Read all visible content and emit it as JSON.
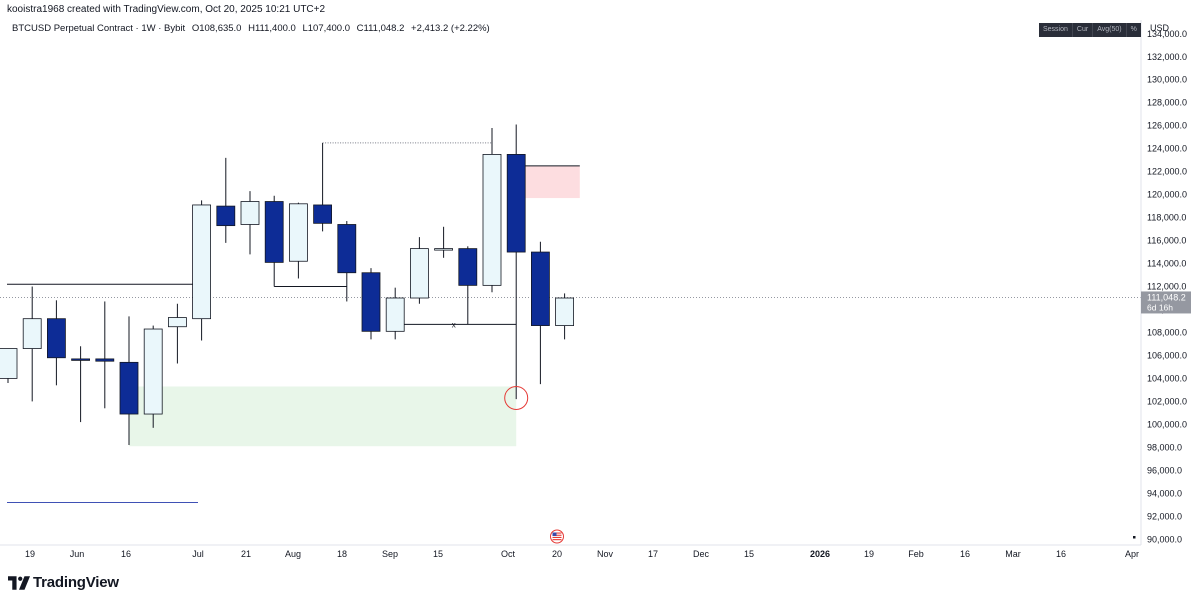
{
  "header": {
    "credit": "kooistra1968 created with TradingView.com, Oct 20, 2025 10:21 UTC+2"
  },
  "legend": {
    "symbol": "BTCUSD Perpetual Contract · 1W · Bybit",
    "open": "O108,635.0",
    "high": "H111,400.0",
    "low": "L107,400.0",
    "close": "C111,048.2",
    "change": "+2,413.2 (+2.22%)"
  },
  "toolbar": {
    "items": [
      "Session",
      "Cur",
      "Avg(50)",
      "%"
    ]
  },
  "axis": {
    "currency": "USD"
  },
  "price_label": {
    "value": "111,048.2",
    "countdown": "6d 16h"
  },
  "brand": {
    "name": "TradingView"
  },
  "colors": {
    "bull_fill": "#eaf7fb",
    "bear_fill": "#0d2c96",
    "candle_border": "#131722",
    "green_zone": "#e8f6e9",
    "red_zone": "#fddde0",
    "circle": "#e53935",
    "blue_line": "#3f51b5"
  },
  "chart_data": {
    "type": "candlestick",
    "title": "BTCUSD Perpetual Contract · 1W · Bybit",
    "x_ticks": [
      "19",
      "Jun",
      "16",
      "Jul",
      "21",
      "Aug",
      "18",
      "Sep",
      "15",
      "Oct",
      "20",
      "Nov",
      "17",
      "Dec",
      "15",
      "2026",
      "19",
      "Feb",
      "16",
      "Mar",
      "16",
      "Apr"
    ],
    "y_ticks": [
      "90,000.0",
      "92,000.0",
      "94,000.0",
      "96,000.0",
      "98,000.0",
      "100,000.0",
      "102,000.0",
      "104,000.0",
      "106,000.0",
      "108,000.0",
      "110,000.0",
      "112,000.0",
      "114,000.0",
      "116,000.0",
      "118,000.0",
      "120,000.0",
      "122,000.0",
      "124,000.0",
      "126,000.0",
      "128,000.0",
      "130,000.0",
      "132,000.0",
      "134,000.0"
    ],
    "ylim": [
      89500,
      135200
    ],
    "candles": [
      {
        "o": 104000,
        "h": 106500,
        "l": 103600,
        "c": 106600
      },
      {
        "o": 106600,
        "h": 112000,
        "l": 102000,
        "c": 109200
      },
      {
        "o": 109200,
        "h": 110800,
        "l": 103400,
        "c": 105800
      },
      {
        "o": 105700,
        "h": 106800,
        "l": 100200,
        "c": 105600
      },
      {
        "o": 105700,
        "h": 110700,
        "l": 101400,
        "c": 105500
      },
      {
        "o": 105400,
        "h": 109400,
        "l": 98200,
        "c": 100900
      },
      {
        "o": 100900,
        "h": 108600,
        "l": 99700,
        "c": 108300
      },
      {
        "o": 108500,
        "h": 110500,
        "l": 105300,
        "c": 109300
      },
      {
        "o": 109200,
        "h": 119500,
        "l": 107300,
        "c": 119100
      },
      {
        "o": 119000,
        "h": 123200,
        "l": 115800,
        "c": 117300
      },
      {
        "o": 117400,
        "h": 120300,
        "l": 114800,
        "c": 119400
      },
      {
        "o": 119400,
        "h": 119900,
        "l": 112000,
        "c": 114100
      },
      {
        "o": 114200,
        "h": 119300,
        "l": 112700,
        "c": 119200
      },
      {
        "o": 119100,
        "h": 124500,
        "l": 116800,
        "c": 117500
      },
      {
        "o": 117400,
        "h": 117700,
        "l": 110700,
        "c": 113200
      },
      {
        "o": 113200,
        "h": 113600,
        "l": 107400,
        "c": 108100
      },
      {
        "o": 108100,
        "h": 111900,
        "l": 107400,
        "c": 111000
      },
      {
        "o": 111000,
        "h": 116300,
        "l": 110500,
        "c": 115300
      },
      {
        "o": 115300,
        "h": 117200,
        "l": 114500,
        "c": 115300
      },
      {
        "o": 115300,
        "h": 115500,
        "l": 108700,
        "c": 112100
      },
      {
        "o": 112100,
        "h": 125800,
        "l": 111500,
        "c": 123500
      },
      {
        "o": 123500,
        "h": 126100,
        "l": 102200,
        "c": 115000
      },
      {
        "o": 115000,
        "h": 115900,
        "l": 103500,
        "c": 108600
      },
      {
        "o": 108600,
        "h": 111400,
        "l": 107400,
        "c": 111000
      }
    ],
    "last_price": 111048.2,
    "annotations": {
      "green_zone": [
        98100,
        103300
      ],
      "red_zone": [
        119700,
        122500
      ],
      "horizontal_levels": [
        112200,
        93200
      ],
      "dotted_level": 124500,
      "range_lines": [
        112000,
        108700
      ],
      "range_marker": "x",
      "circle_level": 102300
    }
  }
}
